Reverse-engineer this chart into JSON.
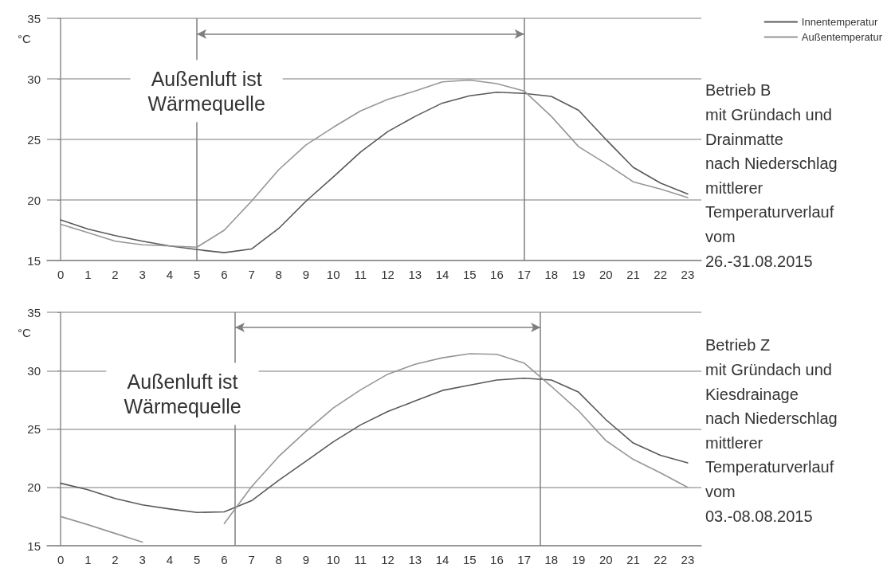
{
  "chart_data": [
    {
      "type": "line",
      "ylabel": "°C",
      "x": [
        0,
        1,
        2,
        3,
        4,
        5,
        6,
        7,
        8,
        9,
        10,
        11,
        12,
        13,
        14,
        15,
        16,
        17,
        18,
        19,
        20,
        21,
        22,
        23
      ],
      "xlim": [
        -0.5,
        23.5
      ],
      "xticks": [
        0,
        1,
        2,
        3,
        4,
        5,
        6,
        7,
        8,
        9,
        10,
        11,
        12,
        13,
        14,
        15,
        16,
        17,
        18,
        19,
        20,
        21,
        22,
        23
      ],
      "ylim": [
        15,
        35
      ],
      "yticks": [
        15,
        20,
        25,
        30,
        35
      ],
      "grid": "y",
      "legend": "top right",
      "marker": "none",
      "line_style": "solid",
      "series": [
        {
          "name": "Innentemperatur",
          "color": "#595959",
          "values": [
            18.35,
            17.6,
            17.05,
            16.6,
            16.2,
            15.9,
            15.65,
            15.95,
            17.65,
            19.9,
            21.9,
            23.95,
            25.65,
            26.9,
            28.0,
            28.6,
            28.9,
            28.8,
            28.55,
            27.4,
            25.0,
            22.7,
            21.4,
            20.5
          ]
        },
        {
          "name": "Außentemperatur",
          "color": "#969696",
          "values": [
            18.0,
            17.3,
            16.6,
            16.3,
            16.2,
            16.1,
            17.5,
            19.9,
            22.5,
            24.55,
            26.0,
            27.35,
            28.3,
            29.0,
            29.75,
            29.9,
            29.6,
            29.0,
            26.9,
            24.4,
            23.0,
            21.5,
            20.9,
            20.2
          ]
        }
      ],
      "ref_lines": [
        {
          "axis": "x",
          "value": 5,
          "color": "#7f7f7f"
        },
        {
          "axis": "x",
          "value": 17,
          "color": "#7f7f7f"
        }
      ],
      "annotations": [
        "Außenluft ist\nWärmequelle",
        "Betrieb B\nmit Gründach und\nDrainmatte\nnach Niederschlag\nmittlerer\nTemperaturverlauf\nvom\n26.-31.08.2015"
      ]
    },
    {
      "type": "line",
      "ylabel": "°C",
      "x": [
        0,
        1,
        2,
        3,
        4,
        5,
        6,
        7,
        8,
        9,
        10,
        11,
        12,
        13,
        14,
        15,
        16,
        17,
        18,
        19,
        20,
        21,
        22,
        23
      ],
      "xlim": [
        -0.5,
        23.5
      ],
      "xticks": [
        0,
        1,
        2,
        3,
        4,
        5,
        6,
        7,
        8,
        9,
        10,
        11,
        12,
        13,
        14,
        15,
        16,
        17,
        18,
        19,
        20,
        21,
        22,
        23
      ],
      "ylim": [
        15,
        35
      ],
      "yticks": [
        15,
        20,
        25,
        30,
        35
      ],
      "grid": "y",
      "marker": "none",
      "line_style": "solid",
      "series": [
        {
          "color": "#595959",
          "values": [
            20.35,
            19.8,
            19.05,
            18.5,
            18.15,
            17.85,
            17.9,
            18.85,
            20.6,
            22.25,
            23.9,
            25.35,
            26.5,
            27.4,
            28.3,
            28.75,
            29.2,
            29.35,
            29.2,
            28.15,
            25.8,
            23.8,
            22.75,
            22.1
          ]
        },
        {
          "color": "#969696",
          "values": [
            17.5,
            16.8,
            16.05,
            15.3,
            null,
            null,
            16.9,
            20.05,
            22.65,
            24.8,
            26.8,
            28.35,
            29.7,
            30.55,
            31.1,
            31.45,
            31.4,
            30.65,
            28.65,
            26.55,
            24.0,
            22.4,
            21.25,
            20.0
          ]
        }
      ],
      "ref_lines": [
        {
          "axis": "x",
          "value": 6.4,
          "color": "#7f7f7f"
        },
        {
          "axis": "x",
          "value": 17.6,
          "color": "#7f7f7f"
        }
      ],
      "annotations": [
        "Außenluft ist\nWärmequelle",
        "Betrieb Z\nmit Gründach und\nKiesdrainage\nnach Niederschlag\nmittlerer\nTemperaturverlauf\nvom\n03.-08.08.2015"
      ]
    }
  ]
}
